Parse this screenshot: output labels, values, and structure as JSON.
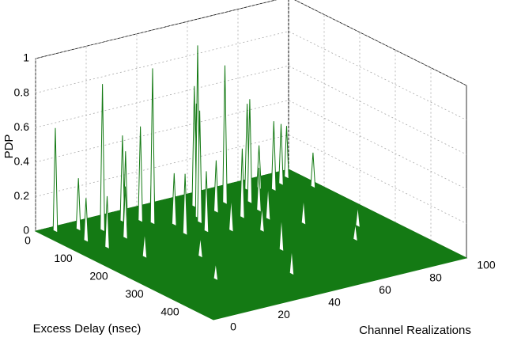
{
  "chart_data": {
    "type": "surface3d",
    "xlabel": "Excess Delay (nsec)",
    "ylabel": "Channel Realizations",
    "zlabel": "PDP",
    "xlim": [
      0,
      500
    ],
    "xticks": [
      0,
      100,
      200,
      300,
      400
    ],
    "ylim": [
      0,
      100
    ],
    "yticks": [
      0,
      20,
      40,
      60,
      80,
      100
    ],
    "zlim": [
      0,
      1
    ],
    "zticks": [
      0,
      0.2,
      0.4,
      0.6,
      0.8,
      1
    ],
    "grid": true,
    "color": "#147a14",
    "peaks": {
      "delay": [
        20,
        35,
        60,
        45,
        80,
        30,
        100,
        55,
        25,
        70,
        90,
        40,
        120,
        65,
        150,
        110,
        50,
        85,
        140,
        30,
        75,
        160,
        95,
        130,
        60,
        180,
        200,
        45,
        105,
        170,
        250,
        220,
        300,
        350,
        280,
        400,
        130,
        90,
        210,
        330
      ],
      "realization": [
        5,
        12,
        18,
        28,
        35,
        42,
        50,
        55,
        60,
        65,
        72,
        78,
        48,
        85,
        38,
        20,
        90,
        8,
        62,
        95,
        25,
        45,
        58,
        70,
        33,
        52,
        15,
        82,
        40,
        68,
        30,
        75,
        55,
        22,
        88,
        45,
        10,
        97,
        60,
        80
      ],
      "pdp": [
        0.6,
        0.3,
        0.85,
        0.5,
        0.9,
        0.45,
        1,
        0.7,
        0.55,
        0.8,
        0.6,
        0.5,
        0.65,
        0.4,
        0.35,
        0.3,
        0.35,
        0.25,
        0.4,
        0.3,
        0.45,
        0.35,
        0.3,
        0.25,
        0.55,
        0.2,
        0.15,
        0.25,
        0.3,
        0.2,
        0.12,
        0.15,
        0.2,
        0.1,
        0.12,
        0.15,
        0.3,
        0.2,
        0.15,
        0.1
      ]
    }
  }
}
